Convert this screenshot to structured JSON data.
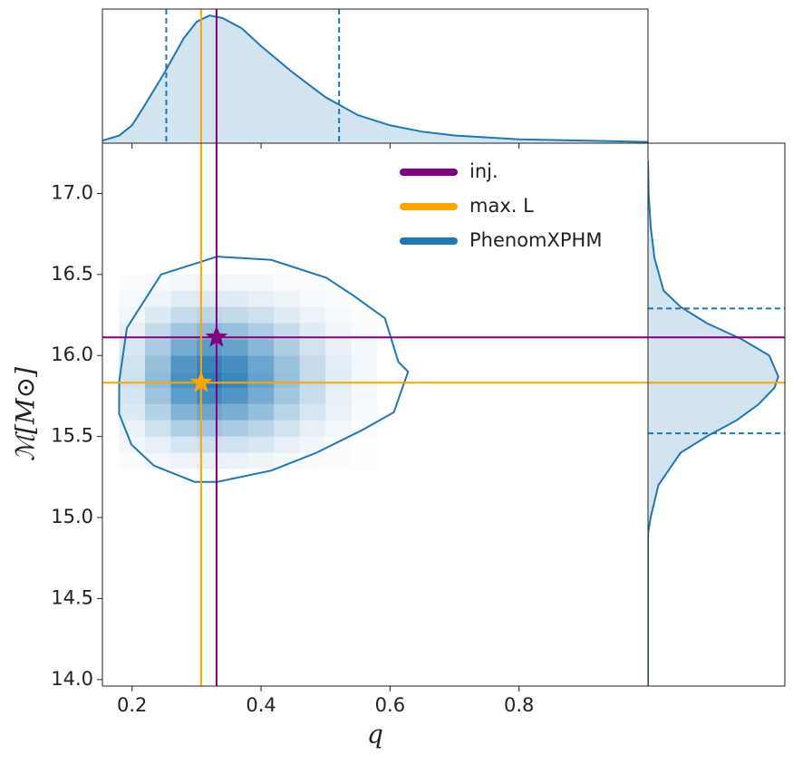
{
  "chart_data": {
    "type": "corner",
    "xlabel": "q",
    "ylabel": "ℳ[M⊙]",
    "xlim": [
      0.154,
      1.0
    ],
    "ylim": [
      13.96,
      17.31
    ],
    "xticks": [
      0.2,
      0.4,
      0.6,
      0.8
    ],
    "yticks": [
      {
        "value": 14,
        "label": "14.0"
      },
      14.5,
      {
        "value": 15,
        "label": "15.0"
      },
      15.5,
      {
        "value": 16,
        "label": "16.0"
      },
      16.5,
      {
        "value": 17,
        "label": "17.0"
      }
    ],
    "legend": "upper right",
    "heatmap": {
      "color": "#1f77b4",
      "x_edges": [
        0.18,
        0.22,
        0.26,
        0.3,
        0.34,
        0.38,
        0.42,
        0.46,
        0.5,
        0.54,
        0.58
      ],
      "y_edges": [
        16.5,
        16.4,
        16.3,
        16.2,
        16.1,
        16.0,
        15.9,
        15.8,
        15.7,
        15.6,
        15.5,
        15.4,
        15.3
      ],
      "values": [
        [
          0.02,
          0.04,
          0.06,
          0.07,
          0.06,
          0.05,
          0.03,
          0.02,
          0.01,
          0
        ],
        [
          0.04,
          0.08,
          0.14,
          0.16,
          0.15,
          0.12,
          0.08,
          0.04,
          0.02,
          0.01
        ],
        [
          0.07,
          0.16,
          0.26,
          0.31,
          0.29,
          0.23,
          0.15,
          0.09,
          0.04,
          0.02
        ],
        [
          0.12,
          0.28,
          0.45,
          0.53,
          0.49,
          0.39,
          0.26,
          0.15,
          0.07,
          0.03
        ],
        [
          0.18,
          0.4,
          0.65,
          0.77,
          0.71,
          0.56,
          0.38,
          0.22,
          0.11,
          0.05
        ],
        [
          0.22,
          0.49,
          0.81,
          0.95,
          0.87,
          0.69,
          0.47,
          0.27,
          0.13,
          0.06
        ],
        [
          0.23,
          0.52,
          0.85,
          1,
          0.92,
          0.73,
          0.49,
          0.28,
          0.14,
          0.06
        ],
        [
          0.2,
          0.46,
          0.76,
          0.89,
          0.82,
          0.65,
          0.44,
          0.25,
          0.12,
          0.05
        ],
        [
          0.16,
          0.35,
          0.58,
          0.68,
          0.63,
          0.5,
          0.33,
          0.19,
          0.1,
          0.04
        ],
        [
          0.1,
          0.23,
          0.37,
          0.44,
          0.4,
          0.32,
          0.22,
          0.12,
          0.06,
          0.03
        ],
        [
          0.06,
          0.12,
          0.2,
          0.24,
          0.22,
          0.18,
          0.12,
          0.07,
          0.03,
          0.01
        ],
        [
          0.03,
          0.06,
          0.09,
          0.11,
          0.1,
          0.08,
          0.05,
          0.03,
          0.02,
          0.01
        ]
      ]
    },
    "series": [
      {
        "name": "inj.",
        "color": "#800080",
        "x": 0.331,
        "y": 16.112
      },
      {
        "name": "max. L",
        "color": "#ffa500",
        "x": 0.307,
        "y": 15.832
      },
      {
        "name": "PhenomXPHM",
        "color": "#1f77b4",
        "contour": {
          "x": [
            0.18,
            0.192,
            0.245,
            0.332,
            0.416,
            0.501,
            0.543,
            0.592,
            0.613,
            0.628,
            0.606,
            0.557,
            0.486,
            0.416,
            0.332,
            0.297,
            0.234,
            0.199,
            0.18
          ],
          "y": [
            15.84,
            16.17,
            16.5,
            16.61,
            16.59,
            16.48,
            16.37,
            16.23,
            15.96,
            15.9,
            15.65,
            15.54,
            15.4,
            15.29,
            15.22,
            15.22,
            15.32,
            15.45,
            15.64
          ]
        },
        "marginal_x": {
          "ylim": [
            0,
            1.05
          ],
          "x": [
            0.154,
            0.18,
            0.2,
            0.22,
            0.25,
            0.28,
            0.3,
            0.32,
            0.34,
            0.37,
            0.4,
            0.45,
            0.5,
            0.55,
            0.6,
            0.65,
            0.7,
            0.8,
            0.9,
            1.0
          ],
          "density": [
            0.02,
            0.06,
            0.14,
            0.3,
            0.55,
            0.82,
            0.95,
            1.0,
            0.98,
            0.9,
            0.76,
            0.55,
            0.36,
            0.22,
            0.14,
            0.09,
            0.06,
            0.03,
            0.02,
            0.01
          ],
          "quantiles": [
            0.253,
            0.521
          ]
        },
        "marginal_y": {
          "xlim": [
            0,
            1.05
          ],
          "y": [
            14.9,
            15.0,
            15.2,
            15.4,
            15.5,
            15.6,
            15.7,
            15.8,
            15.87,
            16.0,
            16.1,
            16.2,
            16.3,
            16.4,
            16.6,
            16.8,
            17.0,
            17.2
          ],
          "density": [
            0,
            0.02,
            0.08,
            0.25,
            0.45,
            0.68,
            0.85,
            0.97,
            1.0,
            0.93,
            0.72,
            0.45,
            0.25,
            0.12,
            0.05,
            0.02,
            0.005,
            0
          ],
          "quantiles": [
            15.52,
            16.29
          ]
        }
      }
    ]
  }
}
